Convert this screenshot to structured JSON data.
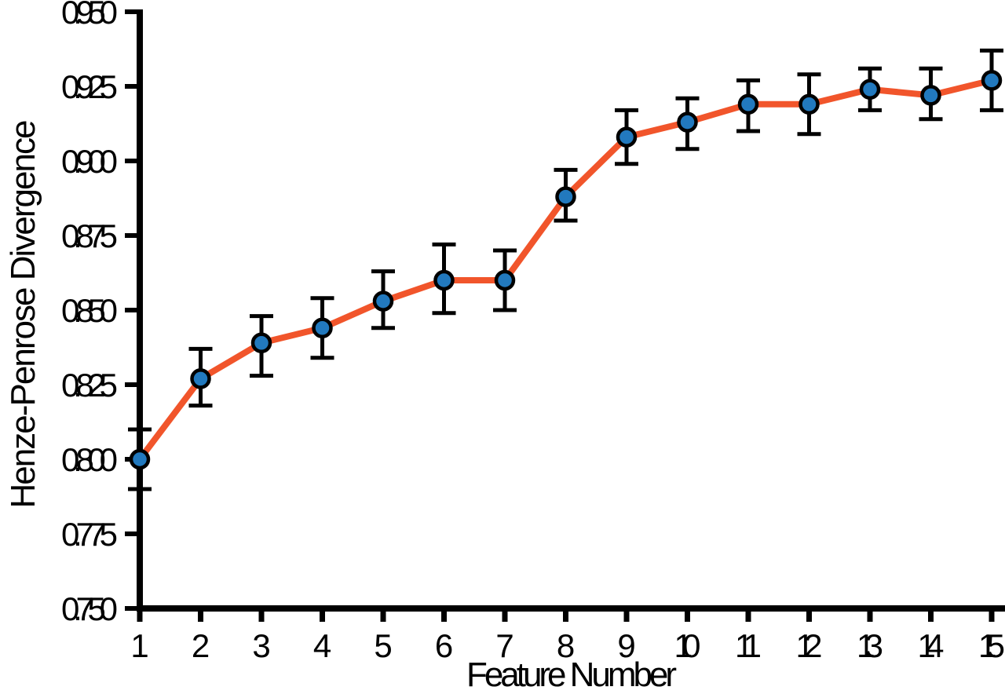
{
  "chart_data": {
    "type": "line",
    "xlabel": "Feature Number",
    "ylabel": "Henze-Penrose Divergence",
    "x": [
      1,
      2,
      3,
      4,
      5,
      6,
      7,
      8,
      9,
      10,
      11,
      12,
      13,
      14,
      15
    ],
    "categories": [
      "1",
      "2",
      "3",
      "4",
      "5",
      "6",
      "7",
      "8",
      "9",
      "10",
      "11",
      "12",
      "13",
      "14",
      "15"
    ],
    "series": [
      {
        "name": "Henze-Penrose Divergence",
        "values": [
          0.8,
          0.827,
          0.839,
          0.844,
          0.853,
          0.86,
          0.86,
          0.888,
          0.908,
          0.913,
          0.919,
          0.919,
          0.924,
          0.922,
          0.927
        ],
        "error_upper": [
          0.81,
          0.837,
          0.848,
          0.854,
          0.863,
          0.872,
          0.87,
          0.897,
          0.917,
          0.921,
          0.927,
          0.929,
          0.931,
          0.931,
          0.937
        ],
        "error_lower": [
          0.79,
          0.818,
          0.828,
          0.834,
          0.844,
          0.849,
          0.85,
          0.88,
          0.899,
          0.904,
          0.91,
          0.909,
          0.917,
          0.914,
          0.917
        ]
      }
    ],
    "ylim": [
      0.75,
      0.95
    ],
    "xlim": [
      1,
      15
    ],
    "yticks": [
      0.75,
      0.775,
      0.8,
      0.825,
      0.85,
      0.875,
      0.9,
      0.925,
      0.95
    ],
    "ytick_labels": [
      "0.750",
      "0.775",
      "0.800",
      "0.825",
      "0.850",
      "0.875",
      "0.900",
      "0.925",
      "0.950"
    ],
    "grid": false,
    "legend_position": "none",
    "marker": "circle",
    "error_bars": true,
    "colors": {
      "line": "#F1552B",
      "marker_fill": "#2279BE",
      "marker_edge": "#000000",
      "error": "#000000",
      "axis": "#000000",
      "text": "#000000",
      "background": "#FFFFFF"
    }
  }
}
